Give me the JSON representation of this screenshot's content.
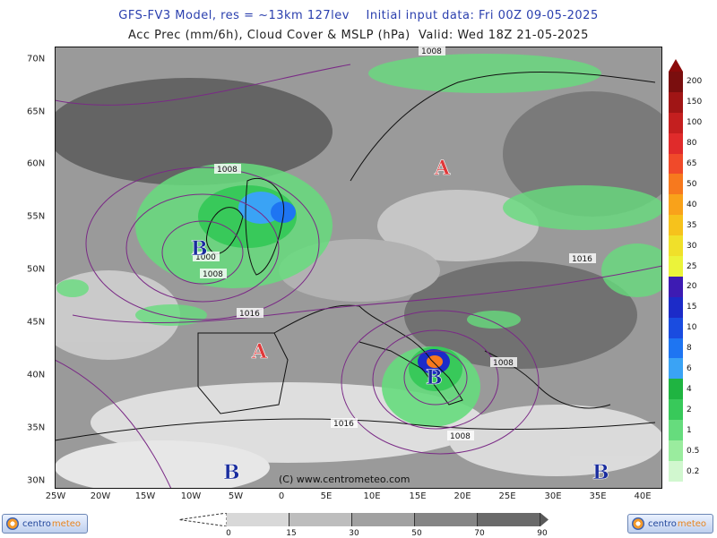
{
  "header": {
    "line1": "GFS-FV3 Model, res = ~13km 127lev    Initial input data: Fri 00Z 09-05-2025",
    "line2": "Acc Prec (mm/6h), Cloud Cover & MSLP (hPa)  Valid: Wed 18Z 21-05-2025"
  },
  "map": {
    "longitude_labels": [
      "25W",
      "20W",
      "15W",
      "10W",
      "5W",
      "0",
      "5E",
      "10E",
      "15E",
      "20E",
      "25E",
      "30E",
      "35E",
      "40E"
    ],
    "latitude_labels": [
      "70N",
      "65N",
      "60N",
      "55N",
      "50N",
      "45N",
      "40N",
      "35N",
      "30N"
    ],
    "pressure_labels": [
      "1008",
      "1008",
      "1000",
      "1008",
      "1016",
      "1016",
      "1008",
      "1016",
      "1008"
    ],
    "pressure_centers": [
      "A",
      "B",
      "A",
      "B",
      "B",
      "B"
    ],
    "colors": {
      "high": "#e0393a",
      "low": "#1a2d9e",
      "isobar": "#7a2a86",
      "land_border": "#111111"
    },
    "copyright": "(C) www.centrometeo.com"
  },
  "precip_legend": {
    "labels": [
      "200",
      "150",
      "100",
      "80",
      "65",
      "50",
      "40",
      "35",
      "30",
      "25",
      "20",
      "15",
      "10",
      "8",
      "6",
      "4",
      "2",
      "1",
      "0.5",
      "0.2"
    ],
    "colors": [
      "#7a0e0e",
      "#a01515",
      "#c41f1f",
      "#e02b2b",
      "#f04a2a",
      "#f7791e",
      "#f9a21a",
      "#f6c21c",
      "#f0e02a",
      "#ebf33a",
      "#3d1bb3",
      "#1c2bc8",
      "#1a4ce0",
      "#1e75f2",
      "#3aa3f5",
      "#1fb441",
      "#38c95a",
      "#66dc7d",
      "#9aec9e",
      "#d1f7cf"
    ]
  },
  "cloud_legend": {
    "labels": [
      "0",
      "15",
      "30",
      "50",
      "70",
      "90"
    ],
    "colors": [
      "#f2f2f2",
      "#d8d8d8",
      "#bdbdbd",
      "#a1a1a1",
      "#858585",
      "#6a6a6a"
    ]
  },
  "logos": {
    "text_part1": "centro",
    "text_part2": "meteo"
  }
}
